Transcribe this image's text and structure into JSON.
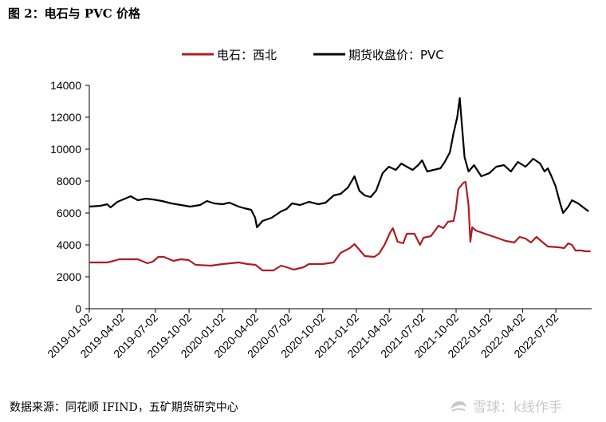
{
  "header": {
    "title": "图 2：电石与 PVC 价格"
  },
  "footer": {
    "source": "数据来源：同花顺 IFIND，五矿期货研究中心"
  },
  "watermark": {
    "text": "雪球：k线作手",
    "icon": "snowball-logo-icon"
  },
  "colors": {
    "carbide": "#b01c22",
    "pvc": "#000000",
    "axis": "#000000"
  },
  "chart_data": {
    "type": "line",
    "title": "",
    "xlabel": "",
    "ylabel": "",
    "ylim": [
      0,
      14000
    ],
    "yticks": [
      0,
      2000,
      4000,
      6000,
      8000,
      10000,
      12000,
      14000
    ],
    "xlim": [
      "2019-01-02",
      "2022-10-08"
    ],
    "xticks": [
      "2019-01-02",
      "2019-04-02",
      "2019-07-02",
      "2019-10-02",
      "2020-01-02",
      "2020-04-02",
      "2020-07-02",
      "2020-10-02",
      "2021-01-02",
      "2021-04-02",
      "2021-07-02",
      "2021-10-02",
      "2022-01-02",
      "2022-04-02",
      "2022-07-02"
    ],
    "legend_position": "top-center",
    "series": [
      {
        "name": "电石：西北",
        "color": "#b01c22",
        "points": [
          [
            "2019-01-02",
            2900
          ],
          [
            "2019-02-20",
            2900
          ],
          [
            "2019-03-10",
            3000
          ],
          [
            "2019-03-25",
            3100
          ],
          [
            "2019-05-15",
            3100
          ],
          [
            "2019-06-10",
            2850
          ],
          [
            "2019-06-25",
            2950
          ],
          [
            "2019-07-10",
            3250
          ],
          [
            "2019-07-25",
            3250
          ],
          [
            "2019-08-20",
            3000
          ],
          [
            "2019-09-10",
            3100
          ],
          [
            "2019-10-01",
            3050
          ],
          [
            "2019-10-20",
            2750
          ],
          [
            "2019-12-01",
            2700
          ],
          [
            "2020-01-02",
            2800
          ],
          [
            "2020-02-15",
            2900
          ],
          [
            "2020-03-10",
            2800
          ],
          [
            "2020-04-01",
            2750
          ],
          [
            "2020-04-20",
            2400
          ],
          [
            "2020-05-20",
            2400
          ],
          [
            "2020-06-10",
            2700
          ],
          [
            "2020-06-25",
            2600
          ],
          [
            "2020-07-15",
            2450
          ],
          [
            "2020-08-10",
            2600
          ],
          [
            "2020-08-25",
            2800
          ],
          [
            "2020-10-01",
            2800
          ],
          [
            "2020-11-01",
            2900
          ],
          [
            "2020-11-20",
            3500
          ],
          [
            "2020-12-15",
            3800
          ],
          [
            "2020-12-28",
            4050
          ],
          [
            "2021-01-10",
            3700
          ],
          [
            "2021-01-25",
            3300
          ],
          [
            "2021-02-20",
            3250
          ],
          [
            "2021-03-05",
            3450
          ],
          [
            "2021-03-20",
            4000
          ],
          [
            "2021-04-05",
            4800
          ],
          [
            "2021-04-12",
            5050
          ],
          [
            "2021-04-25",
            4200
          ],
          [
            "2021-05-10",
            4100
          ],
          [
            "2021-05-20",
            4700
          ],
          [
            "2021-06-10",
            4700
          ],
          [
            "2021-06-25",
            4000
          ],
          [
            "2021-07-05",
            4450
          ],
          [
            "2021-07-25",
            4550
          ],
          [
            "2021-08-15",
            5200
          ],
          [
            "2021-08-28",
            5050
          ],
          [
            "2021-09-10",
            5450
          ],
          [
            "2021-09-25",
            5500
          ],
          [
            "2021-10-01",
            6200
          ],
          [
            "2021-10-08",
            7500
          ],
          [
            "2021-10-22",
            7900
          ],
          [
            "2021-10-28",
            7950
          ],
          [
            "2021-11-05",
            6500
          ],
          [
            "2021-11-10",
            4200
          ],
          [
            "2021-11-15",
            5100
          ],
          [
            "2021-11-25",
            4900
          ],
          [
            "2021-12-20",
            4700
          ],
          [
            "2022-01-15",
            4500
          ],
          [
            "2022-02-15",
            4250
          ],
          [
            "2022-03-10",
            4150
          ],
          [
            "2022-03-25",
            4500
          ],
          [
            "2022-04-10",
            4400
          ],
          [
            "2022-04-25",
            4150
          ],
          [
            "2022-05-10",
            4500
          ],
          [
            "2022-05-25",
            4200
          ],
          [
            "2022-06-10",
            3900
          ],
          [
            "2022-07-10",
            3850
          ],
          [
            "2022-07-25",
            3800
          ],
          [
            "2022-08-05",
            4100
          ],
          [
            "2022-08-15",
            4000
          ],
          [
            "2022-08-25",
            3650
          ],
          [
            "2022-09-10",
            3650
          ],
          [
            "2022-09-20",
            3600
          ],
          [
            "2022-10-05",
            3600
          ]
        ]
      },
      {
        "name": "期货收盘价：PVC",
        "color": "#000000",
        "points": [
          [
            "2019-01-02",
            6400
          ],
          [
            "2019-02-01",
            6450
          ],
          [
            "2019-02-20",
            6550
          ],
          [
            "2019-03-01",
            6350
          ],
          [
            "2019-03-20",
            6700
          ],
          [
            "2019-04-10",
            6900
          ],
          [
            "2019-04-25",
            7050
          ],
          [
            "2019-05-15",
            6800
          ],
          [
            "2019-06-05",
            6900
          ],
          [
            "2019-06-25",
            6850
          ],
          [
            "2019-07-20",
            6750
          ],
          [
            "2019-08-15",
            6600
          ],
          [
            "2019-09-10",
            6500
          ],
          [
            "2019-10-05",
            6400
          ],
          [
            "2019-11-01",
            6500
          ],
          [
            "2019-11-20",
            6750
          ],
          [
            "2019-12-10",
            6600
          ],
          [
            "2020-01-02",
            6550
          ],
          [
            "2020-01-20",
            6650
          ],
          [
            "2020-02-15",
            6400
          ],
          [
            "2020-03-01",
            6300
          ],
          [
            "2020-03-20",
            6200
          ],
          [
            "2020-03-31",
            5700
          ],
          [
            "2020-04-05",
            5100
          ],
          [
            "2020-04-20",
            5500
          ],
          [
            "2020-05-15",
            5700
          ],
          [
            "2020-06-10",
            6100
          ],
          [
            "2020-06-25",
            6250
          ],
          [
            "2020-07-10",
            6600
          ],
          [
            "2020-08-01",
            6500
          ],
          [
            "2020-08-25",
            6700
          ],
          [
            "2020-09-20",
            6550
          ],
          [
            "2020-10-10",
            6650
          ],
          [
            "2020-11-01",
            7100
          ],
          [
            "2020-11-20",
            7200
          ],
          [
            "2020-12-10",
            7600
          ],
          [
            "2020-12-20",
            8000
          ],
          [
            "2020-12-28",
            8300
          ],
          [
            "2021-01-10",
            7400
          ],
          [
            "2021-01-25",
            7100
          ],
          [
            "2021-02-10",
            7000
          ],
          [
            "2021-02-25",
            7400
          ],
          [
            "2021-03-15",
            8500
          ],
          [
            "2021-04-01",
            8900
          ],
          [
            "2021-04-20",
            8700
          ],
          [
            "2021-05-05",
            9100
          ],
          [
            "2021-05-20",
            8900
          ],
          [
            "2021-06-05",
            8700
          ],
          [
            "2021-06-20",
            9000
          ],
          [
            "2021-07-01",
            9300
          ],
          [
            "2021-07-15",
            8600
          ],
          [
            "2021-08-01",
            8700
          ],
          [
            "2021-08-20",
            8800
          ],
          [
            "2021-09-01",
            9200
          ],
          [
            "2021-09-15",
            9800
          ],
          [
            "2021-09-25",
            11000
          ],
          [
            "2021-10-05",
            12000
          ],
          [
            "2021-10-12",
            13200
          ],
          [
            "2021-10-19",
            11200
          ],
          [
            "2021-10-25",
            9500
          ],
          [
            "2021-11-05",
            8600
          ],
          [
            "2021-11-20",
            9000
          ],
          [
            "2021-12-10",
            8300
          ],
          [
            "2022-01-01",
            8500
          ],
          [
            "2022-01-20",
            8900
          ],
          [
            "2022-02-10",
            9000
          ],
          [
            "2022-03-01",
            8600
          ],
          [
            "2022-03-20",
            9200
          ],
          [
            "2022-04-10",
            8900
          ],
          [
            "2022-05-01",
            9400
          ],
          [
            "2022-05-20",
            9100
          ],
          [
            "2022-06-01",
            8600
          ],
          [
            "2022-06-10",
            8800
          ],
          [
            "2022-06-20",
            8300
          ],
          [
            "2022-07-01",
            7700
          ],
          [
            "2022-07-15",
            6500
          ],
          [
            "2022-07-22",
            6000
          ],
          [
            "2022-08-05",
            6400
          ],
          [
            "2022-08-15",
            6800
          ],
          [
            "2022-09-01",
            6600
          ],
          [
            "2022-09-15",
            6350
          ],
          [
            "2022-09-30",
            6100
          ]
        ]
      }
    ]
  }
}
